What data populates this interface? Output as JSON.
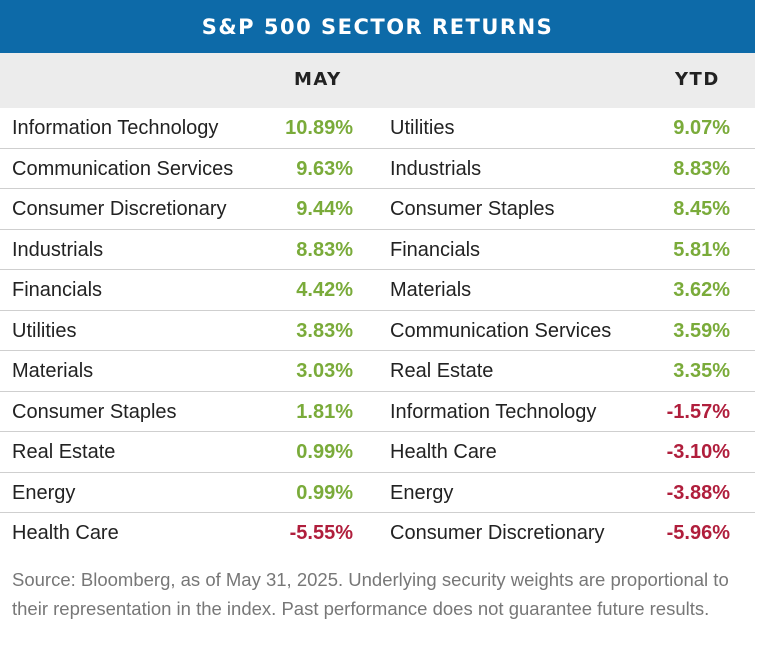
{
  "title": "S&P 500 SECTOR RETURNS",
  "columns": {
    "may": "MAY",
    "ytd": "YTD"
  },
  "colors": {
    "header_bg": "#0d6aa8",
    "positive": "#7aab3a",
    "negative": "#b01e3c"
  },
  "rows": [
    {
      "may_sector": "Information Technology",
      "may_value": "10.89%",
      "may_sign": "pos",
      "ytd_sector": "Utilities",
      "ytd_value": "9.07%",
      "ytd_sign": "pos"
    },
    {
      "may_sector": "Communication Services",
      "may_value": "9.63%",
      "may_sign": "pos",
      "ytd_sector": "Industrials",
      "ytd_value": "8.83%",
      "ytd_sign": "pos"
    },
    {
      "may_sector": "Consumer Discretionary",
      "may_value": "9.44%",
      "may_sign": "pos",
      "ytd_sector": "Consumer Staples",
      "ytd_value": "8.45%",
      "ytd_sign": "pos"
    },
    {
      "may_sector": "Industrials",
      "may_value": "8.83%",
      "may_sign": "pos",
      "ytd_sector": "Financials",
      "ytd_value": "5.81%",
      "ytd_sign": "pos"
    },
    {
      "may_sector": "Financials",
      "may_value": "4.42%",
      "may_sign": "pos",
      "ytd_sector": "Materials",
      "ytd_value": "3.62%",
      "ytd_sign": "pos"
    },
    {
      "may_sector": "Utilities",
      "may_value": "3.83%",
      "may_sign": "pos",
      "ytd_sector": "Communication Services",
      "ytd_value": "3.59%",
      "ytd_sign": "pos"
    },
    {
      "may_sector": "Materials",
      "may_value": "3.03%",
      "may_sign": "pos",
      "ytd_sector": "Real Estate",
      "ytd_value": "3.35%",
      "ytd_sign": "pos"
    },
    {
      "may_sector": "Consumer Staples",
      "may_value": "1.81%",
      "may_sign": "pos",
      "ytd_sector": "Information Technology",
      "ytd_value": "-1.57%",
      "ytd_sign": "neg"
    },
    {
      "may_sector": "Real Estate",
      "may_value": "0.99%",
      "may_sign": "pos",
      "ytd_sector": "Health Care",
      "ytd_value": "-3.10%",
      "ytd_sign": "neg"
    },
    {
      "may_sector": "Energy",
      "may_value": "0.99%",
      "may_sign": "pos",
      "ytd_sector": "Energy",
      "ytd_value": "-3.88%",
      "ytd_sign": "neg"
    },
    {
      "may_sector": "Health Care",
      "may_value": "-5.55%",
      "may_sign": "neg",
      "ytd_sector": "Consumer Discretionary",
      "ytd_value": "-5.96%",
      "ytd_sign": "neg"
    }
  ],
  "footnote": "Source: Bloomberg, as of May 31, 2025. Underlying security weights are proportional to their representation in the index. Past performance does not guarantee future results."
}
